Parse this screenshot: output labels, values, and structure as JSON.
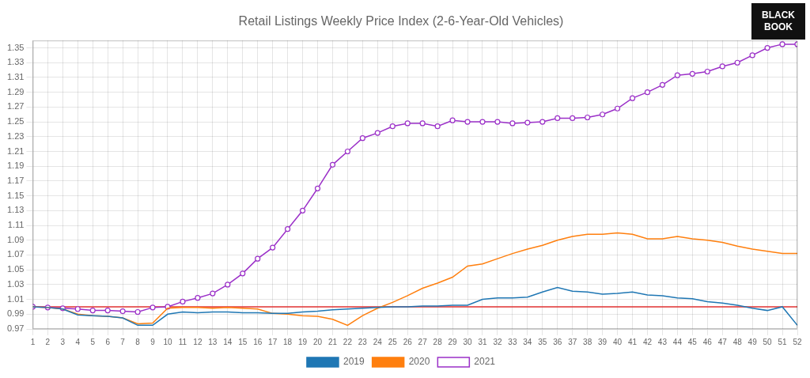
{
  "chart_data": {
    "type": "line",
    "title": "Retail Listings Weekly Price Index (2-6-Year-Old Vehicles)",
    "x": [
      1,
      2,
      3,
      4,
      5,
      6,
      7,
      8,
      9,
      10,
      11,
      12,
      13,
      14,
      15,
      16,
      17,
      18,
      19,
      20,
      21,
      22,
      23,
      24,
      25,
      26,
      27,
      28,
      29,
      30,
      31,
      32,
      33,
      34,
      35,
      36,
      37,
      38,
      39,
      40,
      41,
      42,
      43,
      44,
      45,
      46,
      47,
      48,
      49,
      50,
      51,
      52
    ],
    "series": [
      {
        "name": "2019",
        "color": "#1f77b4",
        "values": [
          1.0,
          0.999,
          0.997,
          0.989,
          0.988,
          0.987,
          0.985,
          0.975,
          0.975,
          0.99,
          0.993,
          0.992,
          0.993,
          0.993,
          0.992,
          0.992,
          0.991,
          0.991,
          0.993,
          0.994,
          0.996,
          0.997,
          0.998,
          0.999,
          1.0,
          1.0,
          1.001,
          1.001,
          1.002,
          1.002,
          1.01,
          1.012,
          1.012,
          1.013,
          1.02,
          1.026,
          1.021,
          1.02,
          1.017,
          1.018,
          1.02,
          1.016,
          1.015,
          1.012,
          1.011,
          1.007,
          1.005,
          1.002,
          0.998,
          0.995,
          1.0,
          0.975
        ]
      },
      {
        "name": "2020",
        "color": "#ff7f0e",
        "values": [
          1.0,
          0.999,
          0.997,
          0.99,
          0.988,
          0.987,
          0.985,
          0.977,
          0.978,
          0.998,
          0.999,
          0.999,
          0.998,
          0.999,
          0.998,
          0.997,
          0.991,
          0.99,
          0.988,
          0.987,
          0.983,
          0.975,
          0.988,
          0.998,
          1.006,
          1.015,
          1.025,
          1.032,
          1.04,
          1.055,
          1.058,
          1.065,
          1.072,
          1.078,
          1.083,
          1.09,
          1.095,
          1.098,
          1.098,
          1.1,
          1.098,
          1.092,
          1.092,
          1.095,
          1.092,
          1.09,
          1.087,
          1.082,
          1.078,
          1.075,
          1.072,
          1.072
        ]
      },
      {
        "name": "2021",
        "color": "#9b30c8",
        "marker": "o",
        "values": [
          1.0,
          0.999,
          0.998,
          0.997,
          0.995,
          0.995,
          0.994,
          0.993,
          0.999,
          1.0,
          1.007,
          1.012,
          1.018,
          1.03,
          1.045,
          1.065,
          1.08,
          1.105,
          1.13,
          1.16,
          1.192,
          1.21,
          1.228,
          1.235,
          1.244,
          1.248,
          1.248,
          1.244,
          1.252,
          1.25,
          1.25,
          1.25,
          1.248,
          1.249,
          1.25,
          1.255,
          1.255,
          1.256,
          1.26,
          1.268,
          1.282,
          1.29,
          1.3,
          1.313,
          1.315,
          1.318,
          1.325,
          1.33,
          1.34,
          1.35,
          1.355,
          1.355
        ]
      }
    ],
    "reference_line": {
      "y": 1.0,
      "color": "#e03030"
    },
    "badge": {
      "text": [
        "BLACK",
        "BOOK"
      ],
      "color": "#111111",
      "text_color": "#ffffff"
    },
    "xlim": [
      1,
      52
    ],
    "xticks": [
      1,
      2,
      3,
      4,
      5,
      6,
      7,
      8,
      9,
      10,
      11,
      12,
      13,
      14,
      15,
      16,
      17,
      18,
      19,
      20,
      21,
      22,
      23,
      24,
      25,
      26,
      27,
      28,
      29,
      30,
      31,
      32,
      33,
      34,
      35,
      36,
      37,
      38,
      39,
      40,
      41,
      42,
      43,
      44,
      45,
      46,
      47,
      48,
      49,
      50,
      51,
      52
    ],
    "ylim": [
      0.97,
      1.36
    ],
    "yticks": [
      0.97,
      0.99,
      1.01,
      1.03,
      1.05,
      1.07,
      1.09,
      1.11,
      1.13,
      1.15,
      1.17,
      1.19,
      1.21,
      1.23,
      1.25,
      1.27,
      1.29,
      1.31,
      1.33,
      1.35
    ],
    "grid": true,
    "legend": "bottom"
  }
}
